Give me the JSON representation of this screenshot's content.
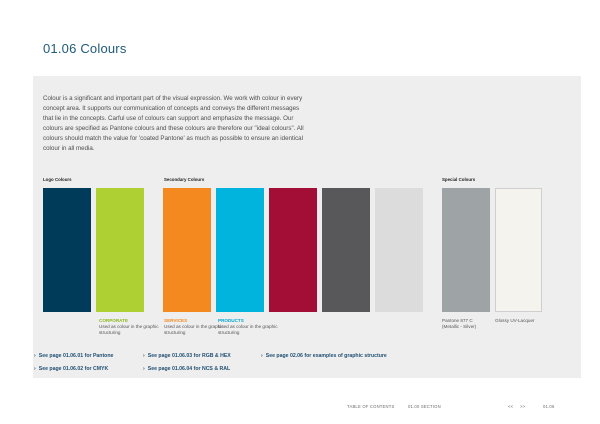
{
  "page": {
    "title": "01.06 Colours"
  },
  "intro": "Colour is a significant and important part of the visual expression. We work with colour in every concept area. It supports our communication of concepts and conveys the different messages that lie in the concepts. Carful use of colours can support and emphasize the message. Our colours are specified as Pantone colours and these colours are therefore our \"ideal colours\". All colours should match the value for 'coated Pantone' as much as possible to ensure an identical colour in all media.",
  "groups": {
    "logo": "Logo Colours",
    "secondary": "Secondary Colours",
    "special": "Special Colours"
  },
  "swatches": [
    {
      "color": "#003b59"
    },
    {
      "color": "#afd033",
      "name": "CORPORATE",
      "desc": "Used as colour in the graphic structuring",
      "name_color": "#8cb81c"
    },
    {
      "color": "#f3891f",
      "name": "SERVICES",
      "desc": "Used as colour in the graphic structuring",
      "name_color": "#f3891f"
    },
    {
      "color": "#00b4dd",
      "name": "PRODUCTS",
      "desc": "Used as colour in the graphic structuring",
      "name_color": "#00a6d1"
    },
    {
      "color": "#a30e37"
    },
    {
      "color": "#58585a"
    },
    {
      "color": "#dcdcdd"
    },
    {
      "color": "#9ea3a6",
      "desc": "Pantone 877 C (Metallic - Silver)"
    },
    {
      "color": "#f4f3ee",
      "desc": "Glossy UV-Lacquer"
    }
  ],
  "links": [
    "See page 01.06.01 for Pantone",
    "See page 01.06.02 for CMYK",
    "See page 01.06.03 for RGB & HEX",
    "See page 01.06.04 for NCS & RAL",
    "See page 02.06 for examples of graphic structure"
  ],
  "footer": {
    "toc": "TABLE OF CONTENTS",
    "section": "01.00 SECTION",
    "prev": "<<",
    "next": ">>",
    "page_number": "01.06"
  }
}
